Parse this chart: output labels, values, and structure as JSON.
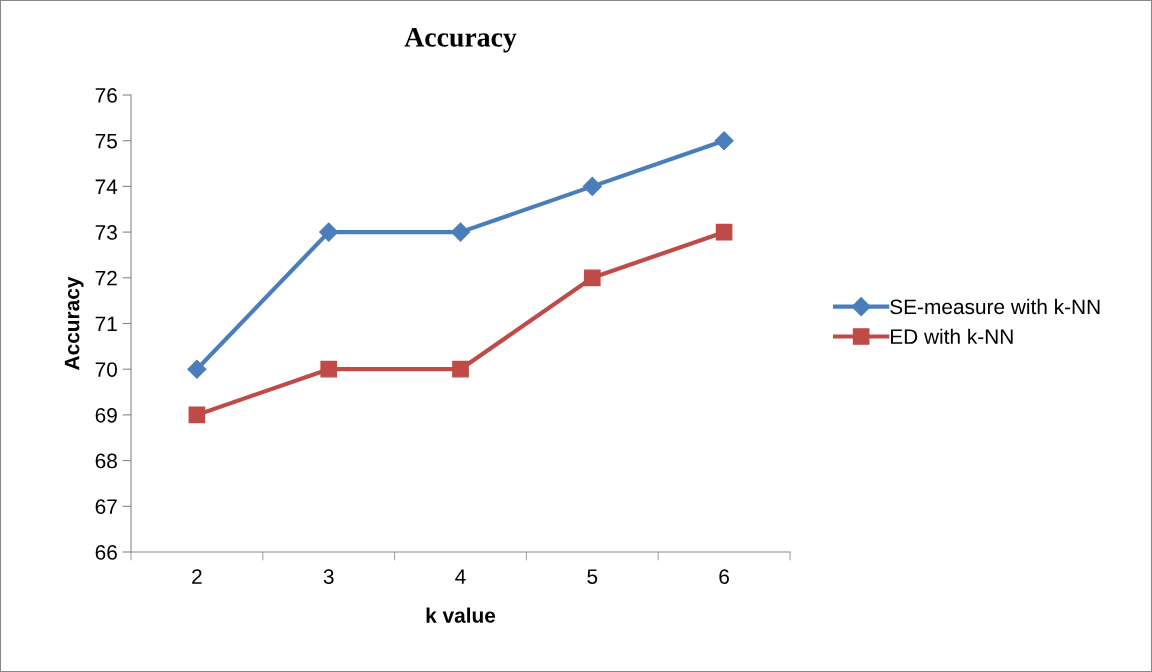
{
  "chart_data": {
    "type": "line",
    "title": "Accuracy",
    "xlabel": "k value",
    "ylabel": "Accuracy",
    "categories": [
      "2",
      "3",
      "4",
      "5",
      "6"
    ],
    "series": [
      {
        "name": "SE-measure with k-NN",
        "color": "#4a7ebb",
        "marker": "diamond",
        "values": [
          70,
          73,
          73,
          74,
          75
        ]
      },
      {
        "name": "ED with k-NN",
        "color": "#be4b48",
        "marker": "square",
        "values": [
          69,
          70,
          70,
          72,
          73
        ]
      }
    ],
    "ylim": [
      66,
      76
    ],
    "yticks": [
      66,
      67,
      68,
      69,
      70,
      71,
      72,
      73,
      74,
      75,
      76
    ],
    "grid": false,
    "legend": "right",
    "line_style": "solid"
  }
}
